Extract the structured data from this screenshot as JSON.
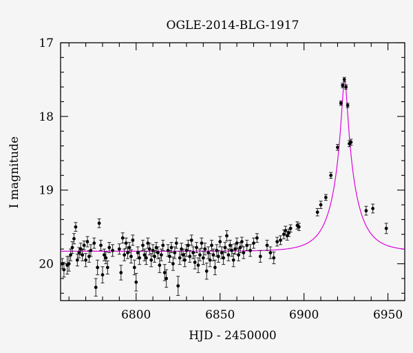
{
  "chart_data": {
    "type": "scatter",
    "title": "OGLE-2014-BLG-1917",
    "xlabel": "HJD - 2450000",
    "ylabel": "I magnitude",
    "xlim": [
      6755,
      6960
    ],
    "ylim": [
      20.5,
      17.0
    ],
    "y_inverted": true,
    "xticks": [
      6800,
      6850,
      6900,
      6950
    ],
    "yticks": [
      17,
      18,
      19,
      20
    ],
    "grid": false,
    "colors": {
      "model": "#dd00dd",
      "points": "#000000",
      "background": "#f5f5f5"
    },
    "model": {
      "name": "",
      "baseline_mag": 19.83,
      "t0": 6924.2,
      "peak_mag": 17.5,
      "tE": 14.0,
      "u0": 0.11
    },
    "series": [
      {
        "name": "",
        "points": [
          {
            "x": 6756,
            "y": 20.0,
            "err": 0.07
          },
          {
            "x": 6757,
            "y": 20.08,
            "err": 0.1
          },
          {
            "x": 6759,
            "y": 20.02,
            "err": 0.12
          },
          {
            "x": 6760,
            "y": 20.0,
            "err": 0.1
          },
          {
            "x": 6761,
            "y": 19.88,
            "err": 0.08
          },
          {
            "x": 6762,
            "y": 19.78,
            "err": 0.08
          },
          {
            "x": 6763,
            "y": 19.66,
            "err": 0.07
          },
          {
            "x": 6764,
            "y": 19.5,
            "err": 0.06
          },
          {
            "x": 6765,
            "y": 19.95,
            "err": 0.08
          },
          {
            "x": 6766,
            "y": 19.85,
            "err": 0.07
          },
          {
            "x": 6767,
            "y": 19.8,
            "err": 0.08
          },
          {
            "x": 6768,
            "y": 19.88,
            "err": 0.08
          },
          {
            "x": 6769,
            "y": 19.75,
            "err": 0.06
          },
          {
            "x": 6770,
            "y": 19.95,
            "err": 0.09
          },
          {
            "x": 6771,
            "y": 19.7,
            "err": 0.07
          },
          {
            "x": 6772,
            "y": 19.9,
            "err": 0.08
          },
          {
            "x": 6773,
            "y": 19.82,
            "err": 0.08
          },
          {
            "x": 6775,
            "y": 19.72,
            "err": 0.07
          },
          {
            "x": 6776,
            "y": 20.32,
            "err": 0.12
          },
          {
            "x": 6777,
            "y": 20.05,
            "err": 0.1
          },
          {
            "x": 6778,
            "y": 19.45,
            "err": 0.06
          },
          {
            "x": 6779,
            "y": 19.75,
            "err": 0.07
          },
          {
            "x": 6780,
            "y": 20.15,
            "err": 0.11
          },
          {
            "x": 6781,
            "y": 19.88,
            "err": 0.08
          },
          {
            "x": 6782,
            "y": 19.92,
            "err": 0.08
          },
          {
            "x": 6783,
            "y": 20.05,
            "err": 0.09
          },
          {
            "x": 6784,
            "y": 19.78,
            "err": 0.07
          },
          {
            "x": 6786,
            "y": 19.82,
            "err": 0.08
          },
          {
            "x": 6790,
            "y": 19.8,
            "err": 0.07
          },
          {
            "x": 6791,
            "y": 20.12,
            "err": 0.1
          },
          {
            "x": 6792,
            "y": 19.65,
            "err": 0.07
          },
          {
            "x": 6793,
            "y": 19.88,
            "err": 0.08
          },
          {
            "x": 6794,
            "y": 19.72,
            "err": 0.07
          },
          {
            "x": 6795,
            "y": 19.85,
            "err": 0.08
          },
          {
            "x": 6796,
            "y": 19.78,
            "err": 0.07
          },
          {
            "x": 6797,
            "y": 19.9,
            "err": 0.09
          },
          {
            "x": 6798,
            "y": 19.68,
            "err": 0.07
          },
          {
            "x": 6799,
            "y": 20.05,
            "err": 0.1
          },
          {
            "x": 6800,
            "y": 20.25,
            "err": 0.12
          },
          {
            "x": 6801,
            "y": 19.85,
            "err": 0.08
          },
          {
            "x": 6802,
            "y": 19.92,
            "err": 0.09
          },
          {
            "x": 6804,
            "y": 19.75,
            "err": 0.07
          },
          {
            "x": 6805,
            "y": 19.88,
            "err": 0.08
          },
          {
            "x": 6806,
            "y": 19.92,
            "err": 0.09
          },
          {
            "x": 6807,
            "y": 19.72,
            "err": 0.07
          },
          {
            "x": 6808,
            "y": 19.8,
            "err": 0.08
          },
          {
            "x": 6809,
            "y": 19.95,
            "err": 0.09
          },
          {
            "x": 6810,
            "y": 19.82,
            "err": 0.08
          },
          {
            "x": 6811,
            "y": 19.9,
            "err": 0.08
          },
          {
            "x": 6812,
            "y": 19.78,
            "err": 0.07
          },
          {
            "x": 6813,
            "y": 19.85,
            "err": 0.08
          },
          {
            "x": 6814,
            "y": 20.02,
            "err": 0.1
          },
          {
            "x": 6815,
            "y": 19.88,
            "err": 0.08
          },
          {
            "x": 6816,
            "y": 19.75,
            "err": 0.07
          },
          {
            "x": 6817,
            "y": 20.12,
            "err": 0.11
          },
          {
            "x": 6818,
            "y": 20.2,
            "err": 0.12
          },
          {
            "x": 6819,
            "y": 19.82,
            "err": 0.08
          },
          {
            "x": 6820,
            "y": 19.9,
            "err": 0.08
          },
          {
            "x": 6821,
            "y": 19.78,
            "err": 0.07
          },
          {
            "x": 6822,
            "y": 20.0,
            "err": 0.09
          },
          {
            "x": 6823,
            "y": 19.85,
            "err": 0.08
          },
          {
            "x": 6824,
            "y": 19.72,
            "err": 0.07
          },
          {
            "x": 6825,
            "y": 20.3,
            "err": 0.13
          },
          {
            "x": 6826,
            "y": 19.92,
            "err": 0.09
          },
          {
            "x": 6827,
            "y": 19.8,
            "err": 0.08
          },
          {
            "x": 6828,
            "y": 19.88,
            "err": 0.08
          },
          {
            "x": 6829,
            "y": 19.95,
            "err": 0.09
          },
          {
            "x": 6830,
            "y": 19.82,
            "err": 0.08
          },
          {
            "x": 6831,
            "y": 19.75,
            "err": 0.07
          },
          {
            "x": 6832,
            "y": 19.9,
            "err": 0.08
          },
          {
            "x": 6833,
            "y": 19.68,
            "err": 0.07
          },
          {
            "x": 6834,
            "y": 19.85,
            "err": 0.08
          },
          {
            "x": 6835,
            "y": 19.98,
            "err": 0.09
          },
          {
            "x": 6836,
            "y": 19.78,
            "err": 0.07
          },
          {
            "x": 6837,
            "y": 20.02,
            "err": 0.1
          },
          {
            "x": 6838,
            "y": 19.88,
            "err": 0.08
          },
          {
            "x": 6839,
            "y": 19.72,
            "err": 0.07
          },
          {
            "x": 6840,
            "y": 19.92,
            "err": 0.09
          },
          {
            "x": 6841,
            "y": 19.8,
            "err": 0.08
          },
          {
            "x": 6842,
            "y": 20.1,
            "err": 0.11
          },
          {
            "x": 6843,
            "y": 19.85,
            "err": 0.08
          },
          {
            "x": 6844,
            "y": 19.95,
            "err": 0.09
          },
          {
            "x": 6845,
            "y": 19.75,
            "err": 0.07
          },
          {
            "x": 6846,
            "y": 19.88,
            "err": 0.08
          },
          {
            "x": 6847,
            "y": 20.05,
            "err": 0.1
          },
          {
            "x": 6848,
            "y": 19.82,
            "err": 0.08
          },
          {
            "x": 6849,
            "y": 19.9,
            "err": 0.08
          },
          {
            "x": 6850,
            "y": 19.7,
            "err": 0.07
          },
          {
            "x": 6851,
            "y": 19.85,
            "err": 0.08
          },
          {
            "x": 6852,
            "y": 19.92,
            "err": 0.09
          },
          {
            "x": 6853,
            "y": 19.78,
            "err": 0.07
          },
          {
            "x": 6854,
            "y": 19.62,
            "err": 0.07
          },
          {
            "x": 6855,
            "y": 19.88,
            "err": 0.08
          },
          {
            "x": 6856,
            "y": 19.75,
            "err": 0.07
          },
          {
            "x": 6857,
            "y": 19.82,
            "err": 0.08
          },
          {
            "x": 6858,
            "y": 19.95,
            "err": 0.09
          },
          {
            "x": 6859,
            "y": 19.8,
            "err": 0.07
          },
          {
            "x": 6860,
            "y": 19.72,
            "err": 0.07
          },
          {
            "x": 6861,
            "y": 19.88,
            "err": 0.08
          },
          {
            "x": 6862,
            "y": 19.78,
            "err": 0.07
          },
          {
            "x": 6863,
            "y": 19.7,
            "err": 0.06
          },
          {
            "x": 6864,
            "y": 19.85,
            "err": 0.08
          },
          {
            "x": 6866,
            "y": 19.75,
            "err": 0.07
          },
          {
            "x": 6868,
            "y": 19.82,
            "err": 0.08
          },
          {
            "x": 6870,
            "y": 19.72,
            "err": 0.07
          },
          {
            "x": 6872,
            "y": 19.65,
            "err": 0.06
          },
          {
            "x": 6874,
            "y": 19.9,
            "err": 0.08
          },
          {
            "x": 6878,
            "y": 19.75,
            "err": 0.07
          },
          {
            "x": 6880,
            "y": 19.85,
            "err": 0.08
          },
          {
            "x": 6882,
            "y": 19.92,
            "err": 0.08
          },
          {
            "x": 6884,
            "y": 19.7,
            "err": 0.06
          },
          {
            "x": 6886,
            "y": 19.68,
            "err": 0.06
          },
          {
            "x": 6888,
            "y": 19.6,
            "err": 0.06
          },
          {
            "x": 6889,
            "y": 19.55,
            "err": 0.06
          },
          {
            "x": 6890,
            "y": 19.62,
            "err": 0.06
          },
          {
            "x": 6891,
            "y": 19.58,
            "err": 0.05
          },
          {
            "x": 6892,
            "y": 19.52,
            "err": 0.05
          },
          {
            "x": 6896,
            "y": 19.48,
            "err": 0.05
          },
          {
            "x": 6897,
            "y": 19.5,
            "err": 0.05
          },
          {
            "x": 6908,
            "y": 19.3,
            "err": 0.05
          },
          {
            "x": 6910,
            "y": 19.2,
            "err": 0.05
          },
          {
            "x": 6913,
            "y": 19.1,
            "err": 0.04
          },
          {
            "x": 6916,
            "y": 18.8,
            "err": 0.04
          },
          {
            "x": 6920,
            "y": 18.42,
            "err": 0.04
          },
          {
            "x": 6922,
            "y": 17.82,
            "err": 0.03
          },
          {
            "x": 6923,
            "y": 17.58,
            "err": 0.03
          },
          {
            "x": 6924,
            "y": 17.5,
            "err": 0.03
          },
          {
            "x": 6925,
            "y": 17.6,
            "err": 0.03
          },
          {
            "x": 6926,
            "y": 17.85,
            "err": 0.03
          },
          {
            "x": 6927,
            "y": 18.37,
            "err": 0.04
          },
          {
            "x": 6928,
            "y": 18.35,
            "err": 0.04
          },
          {
            "x": 6937,
            "y": 19.28,
            "err": 0.06
          },
          {
            "x": 6941,
            "y": 19.25,
            "err": 0.06
          },
          {
            "x": 6949,
            "y": 19.52,
            "err": 0.07
          }
        ]
      }
    ]
  }
}
